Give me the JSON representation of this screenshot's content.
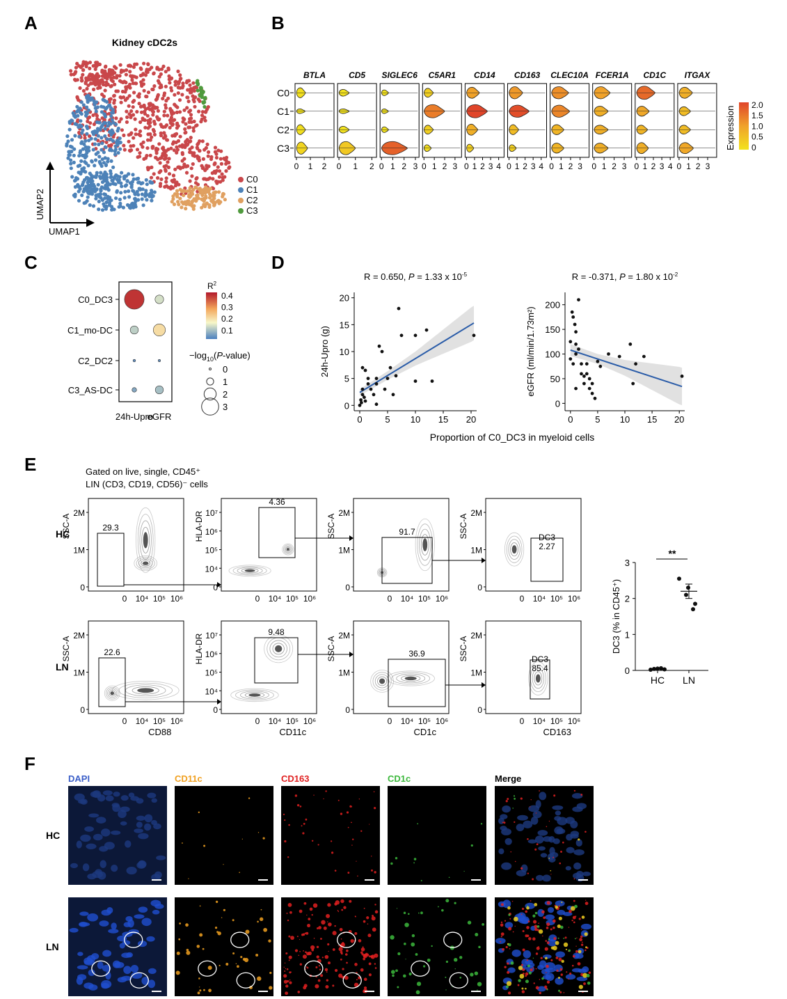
{
  "panels": {
    "A": "A",
    "B": "B",
    "C": "C",
    "D": "D",
    "E": "E",
    "F": "F"
  },
  "chart_data": [
    {
      "id": "A",
      "type": "scatter",
      "title": "Kidney cDC2s",
      "xlabel": "UMAP1",
      "ylabel": "UMAP2",
      "legend": {
        "placement": "right",
        "items": [
          {
            "label": "C0",
            "color": "#c9474a"
          },
          {
            "label": "C1",
            "color": "#4d82b8"
          },
          {
            "label": "C2",
            "color": "#e0a060"
          },
          {
            "label": "C3",
            "color": "#4f9a3d"
          }
        ]
      }
    },
    {
      "id": "B",
      "type": "violin",
      "genes": [
        "BTLA",
        "CD5",
        "SIGLEC6",
        "C5AR1",
        "CD14",
        "CD163",
        "CLEC10A",
        "FCER1A",
        "CD1C",
        "ITGAX"
      ],
      "clusters": [
        "C0",
        "C1",
        "C2",
        "C3"
      ],
      "xticks": [
        [
          "0",
          "1",
          "2"
        ],
        [
          "0",
          "1",
          "2"
        ],
        [
          "0",
          "1",
          "2",
          "3"
        ],
        [
          "0",
          "1",
          "2",
          "3"
        ],
        [
          "0",
          "1",
          "2",
          "3",
          "4"
        ],
        [
          "0",
          "1",
          "2",
          "3",
          "4"
        ],
        [
          "0",
          "1",
          "2",
          "3"
        ],
        [
          "0",
          "1",
          "2",
          "3"
        ],
        [
          "0",
          "1",
          "2",
          "3",
          "4"
        ],
        [
          "0",
          "1",
          "2",
          "3"
        ]
      ],
      "xmax": [
        2.6,
        2.2,
        3.2,
        3.5,
        4.5,
        4.5,
        3.8,
        3.6,
        4.3,
        3.8
      ],
      "expression": [
        [
          0.05,
          0.02,
          0.05,
          0.2
        ],
        [
          0.02,
          0.02,
          0.02,
          0.4
        ],
        [
          0.02,
          0.01,
          0.02,
          1.7
        ],
        [
          0.3,
          1.4,
          0.3,
          0.1
        ],
        [
          1.0,
          2.0,
          0.8,
          0.3
        ],
        [
          1.1,
          1.9,
          0.6,
          0.3
        ],
        [
          1.2,
          1.3,
          0.7,
          0.7
        ],
        [
          1.0,
          0.8,
          0.8,
          0.8
        ],
        [
          1.6,
          0.9,
          0.7,
          0.8
        ],
        [
          0.8,
          0.6,
          0.6,
          0.9
        ]
      ],
      "width": [
        [
          0.6,
          0.1,
          0.6,
          0.8
        ],
        [
          0.3,
          0.1,
          0.3,
          0.9
        ],
        [
          0.2,
          0.1,
          0.2,
          0.9
        ],
        [
          0.5,
          0.9,
          0.5,
          0.3
        ],
        [
          0.7,
          0.9,
          0.7,
          0.4
        ],
        [
          0.8,
          0.8,
          0.6,
          0.3
        ],
        [
          0.8,
          0.8,
          0.6,
          0.6
        ],
        [
          0.8,
          0.6,
          0.5,
          0.6
        ],
        [
          0.9,
          0.6,
          0.5,
          0.7
        ],
        [
          0.7,
          0.5,
          0.5,
          0.7
        ]
      ],
      "colorbar": {
        "label": "Expression",
        "min": 0,
        "max": 2.0,
        "ticks": [
          "2.0",
          "1.5",
          "1.0",
          "0.5",
          "0"
        ]
      }
    },
    {
      "id": "C",
      "type": "dotplot",
      "rows": [
        "C0_DC3",
        "C1_mo-DC",
        "C2_DC2",
        "C3_AS-DC"
      ],
      "cols": [
        "24h-Upro",
        "eGFR"
      ],
      "r2": [
        [
          0.42,
          0.12
        ],
        [
          0.1,
          0.2
        ],
        [
          0.02,
          0.02
        ],
        [
          0.05,
          0.08
        ]
      ],
      "neglog10p": [
        [
          3.5,
          1.3
        ],
        [
          1.2,
          2.0
        ],
        [
          0.1,
          0.05
        ],
        [
          0.5,
          1.2
        ]
      ],
      "colorbar": {
        "title": "R",
        "title_sup": "2",
        "ticks": [
          "0.4",
          "0.3",
          "0.2",
          "0.1"
        ]
      },
      "size_legend": {
        "title_pre": "−log",
        "title_sub": "10",
        "title_open": "(",
        "title_italic": "P",
        "title_post": "-value)",
        "values": [
          "0",
          "1",
          "2",
          "3"
        ]
      }
    },
    {
      "id": "D1",
      "type": "scatter",
      "stat": {
        "pre": "R = 0.650, ",
        "p": "P",
        "mid": " = 1.33 x 10",
        "exp": "-5"
      },
      "ylabel": "24h-Upro (g)",
      "xlim": [
        -1,
        21
      ],
      "ylim": [
        -1,
        21
      ],
      "xticks": [
        "0",
        "5",
        "10",
        "15",
        "20"
      ],
      "yticks": [
        "0",
        "5",
        "10",
        "15",
        "20"
      ],
      "points": [
        [
          0,
          0
        ],
        [
          0.2,
          1
        ],
        [
          0.3,
          0.5
        ],
        [
          0.5,
          2
        ],
        [
          0.8,
          1.5
        ],
        [
          1,
          0.8
        ],
        [
          0.5,
          7
        ],
        [
          1,
          6.5
        ],
        [
          1.5,
          4
        ],
        [
          2,
          3
        ],
        [
          2.5,
          2
        ],
        [
          3,
          0.2
        ],
        [
          3,
          5
        ],
        [
          3.5,
          11
        ],
        [
          4,
          10
        ],
        [
          4.5,
          3
        ],
        [
          5,
          5
        ],
        [
          5.5,
          7
        ],
        [
          6,
          2
        ],
        [
          6.5,
          5.5
        ],
        [
          7,
          18
        ],
        [
          7.5,
          13
        ],
        [
          10,
          13
        ],
        [
          10,
          4.5
        ],
        [
          12,
          14
        ],
        [
          13,
          4.5
        ],
        [
          20.5,
          13
        ],
        [
          0.5,
          3
        ],
        [
          1.5,
          5
        ],
        [
          3,
          4
        ]
      ],
      "fit": {
        "intercept": 2.4,
        "slope": 0.63,
        "band": [
          [
            0,
            0.6
          ],
          [
            5,
            0.8
          ],
          [
            10,
            1.3
          ],
          [
            20,
            3.2
          ]
        ]
      }
    },
    {
      "id": "D2",
      "type": "scatter",
      "stat": {
        "pre": "R = -0.371, ",
        "p": "P",
        "mid": " = 1.80 x 10",
        "exp": "-2"
      },
      "ylabel": "eGFR (ml/min/1.73m²)",
      "xlim": [
        -1,
        21
      ],
      "ylim": [
        -15,
        225
      ],
      "xticks": [
        "0",
        "5",
        "10",
        "15",
        "20"
      ],
      "yticks": [
        "0",
        "50",
        "100",
        "150",
        "200"
      ],
      "points": [
        [
          0,
          125
        ],
        [
          0,
          90
        ],
        [
          0.3,
          185
        ],
        [
          0.5,
          175
        ],
        [
          0.8,
          160
        ],
        [
          1,
          145
        ],
        [
          1,
          120
        ],
        [
          1,
          100
        ],
        [
          0.5,
          80
        ],
        [
          1.5,
          210
        ],
        [
          1.5,
          110
        ],
        [
          2,
          80
        ],
        [
          2,
          60
        ],
        [
          2.5,
          55
        ],
        [
          2.5,
          40
        ],
        [
          3,
          80
        ],
        [
          3,
          60
        ],
        [
          3.5,
          30
        ],
        [
          3.5,
          50
        ],
        [
          4,
          20
        ],
        [
          4,
          40
        ],
        [
          4.5,
          10
        ],
        [
          5,
          85
        ],
        [
          5.5,
          75
        ],
        [
          7,
          100
        ],
        [
          9,
          95
        ],
        [
          11,
          120
        ],
        [
          11.5,
          40
        ],
        [
          12,
          80
        ],
        [
          13.5,
          95
        ],
        [
          20.5,
          55
        ],
        [
          1,
          30
        ]
      ],
      "fit": {
        "intercept": 108,
        "slope": -3.6,
        "band": [
          [
            0,
            12
          ],
          [
            5,
            10
          ],
          [
            10,
            16
          ],
          [
            20,
            38
          ]
        ]
      },
      "shared_xlabel": "Proportion of C0_DC3 in myeloid cells"
    },
    {
      "id": "E",
      "type": "flow_cytometry",
      "header": [
        "Gated on live, single, CD45⁺",
        "LIN (CD3, CD19, CD56)⁻ cells"
      ],
      "rows": [
        "HC",
        "LN"
      ],
      "plots": [
        {
          "ylabel": "SSC-A",
          "xlabel": "CD88",
          "yticks": [
            "2M",
            "1M",
            "0"
          ],
          "gates": {
            "HC": "29.3",
            "LN": "22.6"
          }
        },
        {
          "ylabel": "HLA-DR",
          "xlabel": "CD11c",
          "yticks": [
            "10⁷",
            "10⁶",
            "10⁵",
            "10⁴",
            "0"
          ],
          "gates": {
            "HC": "4.36",
            "LN": "9.48"
          }
        },
        {
          "ylabel": "SSC-A",
          "xlabel": "CD1c",
          "yticks": [
            "2M",
            "1M",
            "0"
          ],
          "gates": {
            "HC": "91.7",
            "LN": "36.9"
          }
        },
        {
          "ylabel": "SSC-A",
          "xlabel": "CD163",
          "yticks": [
            "2M",
            "1M",
            "0"
          ],
          "gates": {
            "HC": "DC3\n2.27",
            "LN": "DC3\n85.4"
          }
        }
      ],
      "xticks": [
        "0",
        "10⁴",
        "10⁵",
        "10⁶"
      ]
    },
    {
      "id": "E_summary",
      "type": "scatter",
      "ylabel": "DC3 (% in CD45⁺)",
      "categories": [
        "HC",
        "LN"
      ],
      "ylim": [
        0,
        3
      ],
      "yticks": [
        "0",
        "1",
        "2",
        "3"
      ],
      "significance": "**",
      "series": [
        {
          "name": "HC",
          "values": [
            0.02,
            0.04,
            0.05,
            0.06,
            0.03
          ],
          "mean": 0.04
        },
        {
          "name": "LN",
          "values": [
            2.55,
            2.3,
            2.1,
            1.85,
            1.7
          ],
          "mean": 2.2
        }
      ]
    },
    {
      "id": "F",
      "type": "image_grid",
      "channels": [
        {
          "label": "DAPI",
          "color": "#3a5ec8"
        },
        {
          "label": "CD11c",
          "color": "#f0a020"
        },
        {
          "label": "CD163",
          "color": "#e02020"
        },
        {
          "label": "CD1c",
          "color": "#3cb83c"
        },
        {
          "label": "Merge",
          "color": "#000000"
        }
      ],
      "rows": [
        "HC",
        "LN"
      ]
    }
  ]
}
